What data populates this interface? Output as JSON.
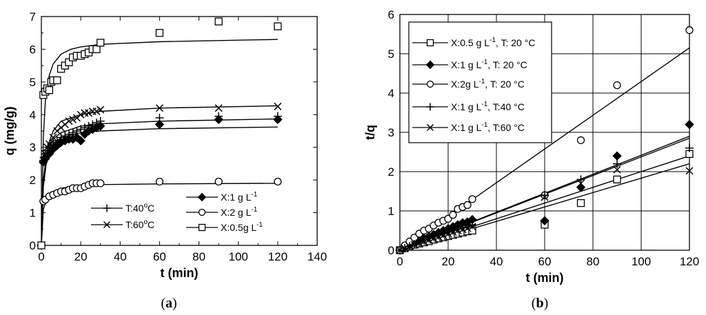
{
  "chart_data": [
    {
      "panel": "a",
      "caption": {
        "open": "(",
        "letter": "a",
        "close": ")"
      },
      "type": "scatter",
      "xlabel": "t (min)",
      "ylabel": "q (mg/g)",
      "xlim": [
        0,
        140
      ],
      "ylim": [
        0,
        7
      ],
      "xticks": [
        0,
        20,
        40,
        60,
        80,
        100,
        120,
        140
      ],
      "yticks": [
        0,
        1,
        2,
        3,
        4,
        5,
        6,
        7
      ],
      "grid": false,
      "legend": "bottom-right",
      "series": [
        {
          "name": "T:40°C",
          "marker": "plus",
          "label": {
            "pre": "T:40",
            "sup": "o",
            "post": "C"
          },
          "x": [
            0,
            1,
            2,
            3,
            4,
            5,
            6,
            8,
            10,
            12,
            14,
            16,
            18,
            20,
            22,
            24,
            26,
            28,
            30,
            60,
            90,
            120
          ],
          "y": [
            0,
            2.6,
            2.8,
            2.9,
            3.0,
            3.1,
            3.15,
            3.2,
            3.3,
            3.35,
            3.4,
            3.45,
            3.5,
            3.55,
            3.6,
            3.65,
            3.7,
            3.75,
            3.8,
            3.9,
            3.95,
            3.95
          ],
          "fit": [
            [
              0,
              0
            ],
            [
              1,
              1.9
            ],
            [
              3,
              2.85
            ],
            [
              6,
              3.25
            ],
            [
              10,
              3.45
            ],
            [
              20,
              3.65
            ],
            [
              30,
              3.72
            ],
            [
              60,
              3.8
            ],
            [
              120,
              3.87
            ]
          ]
        },
        {
          "name": "T:60°C",
          "marker": "x",
          "label": {
            "pre": "T:60",
            "sup": "o",
            "post": "C"
          },
          "x": [
            0,
            1,
            2,
            3,
            4,
            6,
            8,
            10,
            12,
            14,
            16,
            18,
            20,
            22,
            24,
            26,
            28,
            30,
            60,
            90,
            120
          ],
          "y": [
            0,
            2.6,
            2.8,
            3.0,
            3.1,
            3.3,
            3.5,
            3.6,
            3.7,
            3.8,
            3.85,
            3.9,
            4.0,
            4.05,
            4.05,
            4.1,
            4.1,
            4.15,
            4.2,
            4.2,
            4.25
          ],
          "fit": [
            [
              0,
              0
            ],
            [
              1,
              2.0
            ],
            [
              3,
              3.0
            ],
            [
              6,
              3.5
            ],
            [
              10,
              3.8
            ],
            [
              20,
              4.0
            ],
            [
              30,
              4.1
            ],
            [
              60,
              4.2
            ],
            [
              120,
              4.27
            ]
          ]
        },
        {
          "name": "X:1 g L-1",
          "marker": "diamond",
          "label": {
            "pre": "X:1 g L",
            "sup": "-1",
            "post": ""
          },
          "x": [
            0,
            1,
            2,
            4,
            6,
            8,
            10,
            12,
            14,
            16,
            18,
            20,
            22,
            24,
            26,
            28,
            30,
            60,
            90,
            120
          ],
          "y": [
            0,
            2.55,
            2.65,
            2.8,
            2.95,
            3.05,
            3.15,
            3.2,
            3.25,
            3.25,
            3.3,
            3.2,
            3.4,
            3.5,
            3.55,
            3.6,
            3.65,
            3.7,
            3.85,
            3.85
          ],
          "fit": [
            [
              0,
              0
            ],
            [
              1,
              1.8
            ],
            [
              3,
              2.75
            ],
            [
              6,
              3.1
            ],
            [
              10,
              3.3
            ],
            [
              20,
              3.45
            ],
            [
              30,
              3.5
            ],
            [
              60,
              3.57
            ],
            [
              120,
              3.62
            ]
          ]
        },
        {
          "name": "X:2 g L-1",
          "marker": "circle",
          "label": {
            "pre": "X:2 g L",
            "sup": "-1",
            "post": ""
          },
          "x": [
            0,
            1,
            2,
            4,
            6,
            8,
            10,
            12,
            14,
            16,
            18,
            20,
            22,
            24,
            26,
            28,
            30,
            60,
            90,
            120
          ],
          "y": [
            0,
            1.35,
            1.4,
            1.5,
            1.55,
            1.6,
            1.65,
            1.65,
            1.7,
            1.75,
            1.75,
            1.75,
            1.8,
            1.85,
            1.9,
            1.9,
            1.9,
            1.95,
            1.95,
            1.95
          ],
          "fit": [
            [
              0,
              0
            ],
            [
              1,
              1.1
            ],
            [
              3,
              1.5
            ],
            [
              6,
              1.65
            ],
            [
              10,
              1.75
            ],
            [
              20,
              1.83
            ],
            [
              30,
              1.86
            ],
            [
              60,
              1.88
            ],
            [
              120,
              1.9
            ]
          ]
        },
        {
          "name": "X:0.5g L-1",
          "marker": "square",
          "label": {
            "pre": "X:0.5g L",
            "sup": "-1",
            "post": ""
          },
          "x": [
            0,
            1,
            2,
            3,
            4,
            5,
            6,
            8,
            10,
            12,
            14,
            16,
            18,
            20,
            22,
            24,
            26,
            28,
            30,
            60,
            90,
            120
          ],
          "y": [
            0,
            4.6,
            4.7,
            4.8,
            4.75,
            5.0,
            5.05,
            5.05,
            5.4,
            5.5,
            5.6,
            5.75,
            5.8,
            5.8,
            5.85,
            5.9,
            6.0,
            6.0,
            6.2,
            6.5,
            6.85,
            6.7
          ],
          "fit": [
            [
              0,
              0
            ],
            [
              1,
              3.3
            ],
            [
              2,
              4.4
            ],
            [
              4,
              5.2
            ],
            [
              6,
              5.55
            ],
            [
              10,
              5.85
            ],
            [
              15,
              6.0
            ],
            [
              20,
              6.07
            ],
            [
              30,
              6.15
            ],
            [
              60,
              6.23
            ],
            [
              120,
              6.3
            ]
          ]
        }
      ]
    },
    {
      "panel": "b",
      "caption": {
        "open": "(",
        "letter": "b",
        "close": ")"
      },
      "type": "scatter",
      "xlabel": "t (min)",
      "ylabel": "t/q",
      "xlim": [
        0,
        120
      ],
      "ylim": [
        0,
        6
      ],
      "xticks": [
        0,
        20,
        40,
        60,
        80,
        100,
        120
      ],
      "yticks": [
        0,
        1,
        2,
        3,
        4,
        5,
        6
      ],
      "grid": true,
      "legend": "top-left",
      "series": [
        {
          "name": "X:0.5 g L-1, T: 20 °C",
          "marker": "square",
          "label": {
            "pre": "X:0.5 g L",
            "sup": "-1",
            "post": ", T: 20 °C"
          },
          "x": [
            0,
            2,
            4,
            6,
            8,
            10,
            12,
            14,
            16,
            18,
            20,
            22,
            24,
            26,
            28,
            30,
            60,
            75,
            90,
            120
          ],
          "y": [
            0,
            0.05,
            0.1,
            0.14,
            0.17,
            0.2,
            0.23,
            0.27,
            0.3,
            0.33,
            0.36,
            0.39,
            0.42,
            0.45,
            0.48,
            0.5,
            0.65,
            1.2,
            1.8,
            2.45
          ],
          "fit": [
            [
              0,
              0
            ],
            [
              120,
              2.2
            ]
          ]
        },
        {
          "name": "X:1 g L-1, T: 20 °C",
          "marker": "diamond",
          "label": {
            "pre": "X:1 g L",
            "sup": "-1",
            "post": ", T: 20  °C"
          },
          "x": [
            0,
            2,
            4,
            6,
            8,
            10,
            12,
            14,
            16,
            18,
            20,
            22,
            24,
            26,
            28,
            30,
            60,
            75,
            90,
            120
          ],
          "y": [
            0,
            0.07,
            0.13,
            0.2,
            0.25,
            0.3,
            0.35,
            0.4,
            0.45,
            0.5,
            0.55,
            0.6,
            0.65,
            0.7,
            0.72,
            0.78,
            0.75,
            1.6,
            2.4,
            3.2
          ],
          "fit": [
            [
              0,
              0
            ],
            [
              120,
              2.9
            ]
          ]
        },
        {
          "name": "X:2g L-1, T: 20 °C",
          "marker": "circle",
          "label": {
            "pre": "X:2g L",
            "sup": "-1",
            "post": ", T: 20  °C"
          },
          "x": [
            0,
            2,
            4,
            6,
            8,
            10,
            12,
            14,
            16,
            18,
            20,
            22,
            24,
            26,
            28,
            30,
            60,
            75,
            90,
            120
          ],
          "y": [
            0,
            0.12,
            0.22,
            0.32,
            0.42,
            0.5,
            0.55,
            0.63,
            0.7,
            0.75,
            0.8,
            0.9,
            1.05,
            1.1,
            1.15,
            1.3,
            1.4,
            2.8,
            4.2,
            5.6
          ],
          "fit": [
            [
              0,
              0
            ],
            [
              120,
              5.15
            ]
          ]
        },
        {
          "name": "X:1 g L-1, T:40 °C",
          "marker": "plus",
          "label": {
            "pre": "X:1 g L",
            "sup": "-1",
            "post": ", T:40 °C"
          },
          "x": [
            0,
            2,
            4,
            6,
            8,
            10,
            12,
            14,
            16,
            18,
            20,
            22,
            24,
            26,
            28,
            30,
            60,
            75,
            90,
            120
          ],
          "y": [
            0,
            0.05,
            0.1,
            0.15,
            0.2,
            0.25,
            0.3,
            0.34,
            0.38,
            0.42,
            0.46,
            0.5,
            0.54,
            0.58,
            0.62,
            0.65,
            1.4,
            1.8,
            2.2,
            2.6
          ],
          "fit": [
            [
              0,
              0
            ],
            [
              120,
              2.4
            ]
          ]
        },
        {
          "name": "X:1 g L-1, T:60 °C",
          "marker": "x",
          "label": {
            "pre": "X:1 g L",
            "sup": "-1",
            "post": ", T:60 °C"
          },
          "x": [
            0,
            2,
            4,
            6,
            8,
            10,
            12,
            14,
            16,
            18,
            20,
            22,
            24,
            26,
            28,
            30,
            60,
            75,
            90,
            120
          ],
          "y": [
            0,
            0.05,
            0.1,
            0.14,
            0.18,
            0.22,
            0.26,
            0.3,
            0.34,
            0.38,
            0.42,
            0.46,
            0.5,
            0.53,
            0.56,
            0.6,
            1.35,
            1.7,
            2.05,
            2.02
          ],
          "fit": [
            [
              0,
              0
            ],
            [
              120,
              2.85
            ]
          ]
        }
      ]
    }
  ]
}
